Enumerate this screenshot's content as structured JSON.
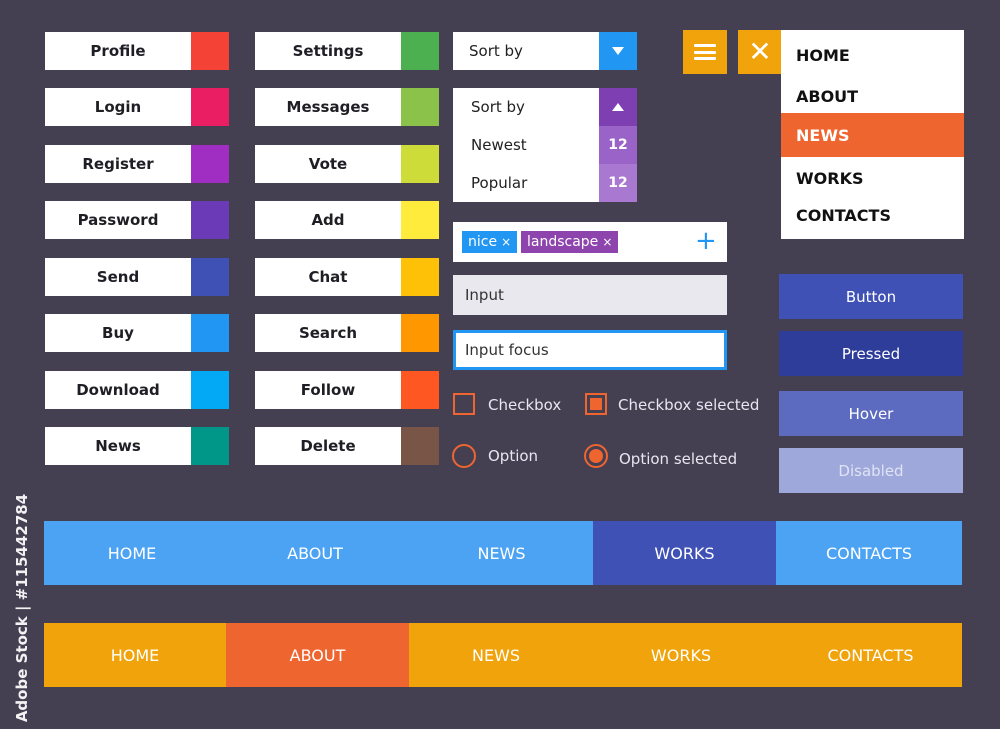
{
  "left_buttons": [
    {
      "label": "Profile",
      "color": "#f44336"
    },
    {
      "label": "Login",
      "color": "#e91e63"
    },
    {
      "label": "Register",
      "color": "#a12ec2"
    },
    {
      "label": "Password",
      "color": "#6a3ab7"
    },
    {
      "label": "Send",
      "color": "#3f51b5"
    },
    {
      "label": "Buy",
      "color": "#2196f3"
    },
    {
      "label": "Download",
      "color": "#03a9f4"
    },
    {
      "label": "News",
      "color": "#009688"
    }
  ],
  "middle_buttons": [
    {
      "label": "Settings",
      "color": "#4caf50"
    },
    {
      "label": "Messages",
      "color": "#8bc34a"
    },
    {
      "label": "Vote",
      "color": "#cddc39"
    },
    {
      "label": "Add",
      "color": "#ffeb3b"
    },
    {
      "label": "Chat",
      "color": "#ffc107"
    },
    {
      "label": "Search",
      "color": "#ff9800"
    },
    {
      "label": "Follow",
      "color": "#ff5722"
    },
    {
      "label": "Delete",
      "color": "#795548"
    }
  ],
  "sort_select": {
    "value": "Sort by"
  },
  "sort_dropdown": {
    "header": "Sort by",
    "options": [
      {
        "label": "Newest",
        "count": "12"
      },
      {
        "label": "Popular",
        "count": "12"
      }
    ]
  },
  "icon_buttons": {
    "menu_icon": "hamburger-icon",
    "close_icon": "close-icon",
    "close_glyph": "✕"
  },
  "vertical_menu": {
    "items": [
      "HOME",
      "ABOUT",
      "NEWS",
      "WORKS",
      "CONTACTS"
    ],
    "active": "NEWS"
  },
  "tags": [
    {
      "label": "nice",
      "remove": "×",
      "color": "#2196f3"
    },
    {
      "label": "landscape",
      "remove": "×",
      "color": "#8e44ad"
    }
  ],
  "add_tag_glyph": "+",
  "inputs": {
    "plain": "Input",
    "focus": "Input focus"
  },
  "checkboxes": {
    "unchecked": "Checkbox",
    "checked": "Checkbox selected"
  },
  "radios": {
    "unselected": "Option",
    "selected": "Option selected"
  },
  "state_buttons": [
    {
      "label": "Button",
      "color": "#3f51b5"
    },
    {
      "label": "Pressed",
      "color": "#2f3d9a"
    },
    {
      "label": "Hover",
      "color": "#5c6bc0"
    },
    {
      "label": "Disabled",
      "color": "#9fa8da"
    }
  ],
  "blue_nav": {
    "items": [
      "HOME",
      "ABOUT",
      "NEWS",
      "WORKS",
      "CONTACTS"
    ],
    "active": "WORKS",
    "color": "#4da3f3",
    "active_color": "#3f51b5"
  },
  "orange_nav": {
    "items": [
      "HOME",
      "ABOUT",
      "NEWS",
      "WORKS",
      "CONTACTS"
    ],
    "active": "ABOUT",
    "color": "#f0a30a",
    "active_color": "#ef6530"
  },
  "side_caption": "Adobe Stock | #115442784"
}
